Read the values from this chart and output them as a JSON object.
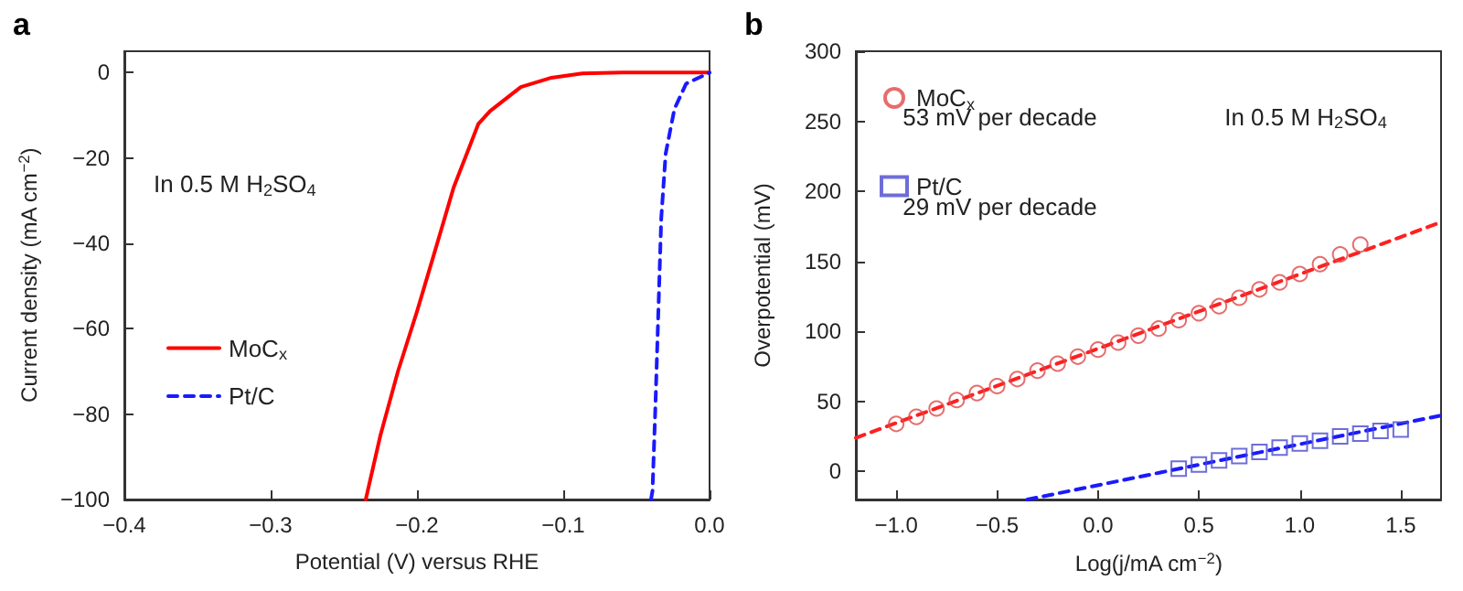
{
  "chart_data": [
    {
      "type": "line",
      "title": "a",
      "xlabel": "Potential (V) versus RHE",
      "ylabel": "Current density (mA cm$^{−2}$)",
      "annotations": [
        "In 0.5 M H$_{2}$SO$_{4}$"
      ],
      "xlim": [
        -0.4,
        0
      ],
      "ylim": [
        -100,
        5
      ],
      "xticks": [
        {
          "value": -0.4,
          "label": "−0.4"
        },
        {
          "value": -0.3,
          "label": "−0.3"
        },
        {
          "value": -0.2,
          "label": "−0.2"
        },
        {
          "value": -0.1,
          "label": "−0.1"
        },
        {
          "value": 0,
          "label": "0.0"
        }
      ],
      "yticks": [
        {
          "value": -100,
          "label": "−100"
        },
        {
          "value": -80,
          "label": "−80"
        },
        {
          "value": -60,
          "label": "−60"
        },
        {
          "value": -40,
          "label": "−40"
        },
        {
          "value": -20,
          "label": "−20"
        },
        0
      ],
      "grid": false,
      "legend": "bottom left",
      "marker": "none",
      "series": [
        {
          "name": "MoC$_{x}$",
          "color": "#ff0000",
          "line_style": "solid",
          "x": [
            -0.235,
            -0.225,
            -0.213,
            -0.2,
            -0.187,
            -0.175,
            -0.158,
            -0.15,
            -0.129,
            -0.108,
            -0.087,
            -0.06,
            0
          ],
          "values": [
            -100,
            -85,
            -70,
            -56,
            -41,
            -27,
            -12,
            -9,
            -3.4,
            -1.2,
            -0.2,
            0,
            0
          ]
        },
        {
          "name": "Pt/C",
          "color": "#1a1aff",
          "line_style": "dashed",
          "x": [
            -0.04,
            -0.039,
            -0.037,
            -0.035,
            -0.033,
            -0.03,
            -0.024,
            -0.016,
            0
          ],
          "values": [
            -100,
            -98,
            -78,
            -56,
            -34,
            -19,
            -8.5,
            -2.6,
            0
          ]
        }
      ]
    },
    {
      "type": "scatter",
      "title": "b",
      "xlabel": "Log(j/mA cm$^{−2}$)",
      "ylabel": "Overpotential (mV)",
      "annotations": [
        "In 0.5 M H$_{2}$SO$_{4}$",
        "53 mV per decade",
        "29 mV per decade"
      ],
      "xlim": [
        -1.2,
        1.7
      ],
      "ylim": [
        -20,
        300
      ],
      "xticks": [
        {
          "value": -1,
          "label": "−1.0"
        },
        {
          "value": -0.5,
          "label": "−0.5"
        },
        {
          "value": 0,
          "label": "0.0"
        },
        {
          "value": 0.5,
          "label": "0.5"
        },
        {
          "value": 1,
          "label": "1.0"
        },
        {
          "value": 1.5,
          "label": "1.5"
        }
      ],
      "yticks": [
        0,
        50,
        100,
        150,
        200,
        250,
        300
      ],
      "grid": false,
      "legend": "top left",
      "series": [
        {
          "name": "MoC$_{x}$",
          "color": "#e04848",
          "marker": "circle",
          "x": [
            -1.0,
            -0.9,
            -0.8,
            -0.7,
            -0.6,
            -0.5,
            -0.4,
            -0.3,
            -0.2,
            -0.1,
            0,
            0.1,
            0.2,
            0.3,
            0.4,
            0.5,
            0.6,
            0.7,
            0.8,
            0.9,
            1.0,
            1.1,
            1.2,
            1.3
          ],
          "values": [
            34,
            39,
            45,
            51,
            56,
            61,
            66,
            72,
            77,
            82,
            87,
            92,
            97,
            102,
            108,
            113,
            118,
            124,
            130,
            135,
            141,
            148,
            155,
            162
          ]
        },
        {
          "name": "Pt/C",
          "color": "#4848d0",
          "marker": "square",
          "x": [
            0.4,
            0.5,
            0.6,
            0.7,
            0.8,
            0.9,
            1.0,
            1.1,
            1.2,
            1.3,
            1.4,
            1.5
          ],
          "values": [
            2,
            5,
            8,
            11,
            14,
            17,
            20,
            22,
            25,
            27,
            29,
            30
          ]
        },
        {
          "type": "line",
          "color": "#ff2020",
          "marker": "none",
          "line_style": "dashed",
          "x": [
            -1.2,
            1.7
          ],
          "values": [
            24,
            178
          ]
        },
        {
          "type": "line",
          "color": "#1a1aff",
          "marker": "none",
          "line_style": "dashed",
          "x": [
            -0.35,
            1.7
          ],
          "values": [
            -20,
            40
          ]
        }
      ]
    }
  ]
}
